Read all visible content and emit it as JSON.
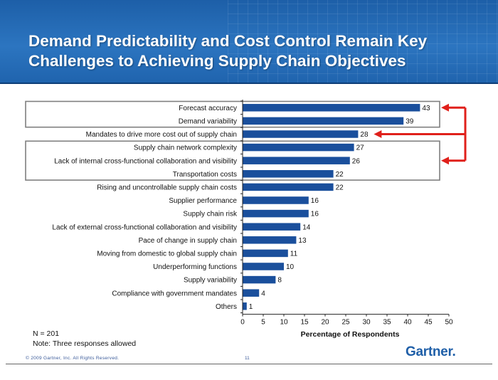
{
  "slide": {
    "title_line1": "Demand Predictability and Cost Control Remain Key",
    "title_line2": "Challenges to Achieving Supply Chain Objectives",
    "sample_size": "N = 201",
    "note": "Note: Three responses allowed",
    "copyright": "© 2009 Gartner, Inc. All Rights Reserved.",
    "page_number": "11",
    "logo": "Gartner",
    "logo_dot": "."
  },
  "colors": {
    "header_blue": "#2c75c0",
    "bar_blue": "#1a4f9c",
    "highlight_arrow": "#e0201b",
    "box_border": "#7f7f7f"
  },
  "chart_data": {
    "type": "bar",
    "orientation": "horizontal",
    "categories": [
      "Forecast accuracy",
      "Demand variability",
      "Mandates to drive more cost out of supply chain",
      "Supply chain network complexity",
      "Lack of internal cross-functional collaboration and visibility",
      "Transportation costs",
      "Rising and uncontrollable supply chain costs",
      "Supplier performance",
      "Supply chain risk",
      "Lack of external cross-functional collaboration and visibility",
      "Pace of change in supply chain",
      "Moving from domestic to global supply chain",
      "Underperforming functions",
      "Supply variability",
      "Compliance with government mandates",
      "Others"
    ],
    "values": [
      43,
      39,
      28,
      27,
      26,
      22,
      22,
      16,
      16,
      14,
      13,
      11,
      10,
      8,
      4,
      1
    ],
    "xlabel": "Percentage of Respondents",
    "ylabel": "",
    "xlim": [
      0,
      50
    ],
    "xticks": [
      0,
      5,
      10,
      15,
      20,
      25,
      30,
      35,
      40,
      45,
      50
    ],
    "grid": false,
    "data_labels": true,
    "highlight_groups": [
      [
        0,
        1
      ],
      [
        3,
        4,
        5
      ]
    ],
    "highlight_arrow_targets": [
      0,
      2,
      4
    ]
  }
}
